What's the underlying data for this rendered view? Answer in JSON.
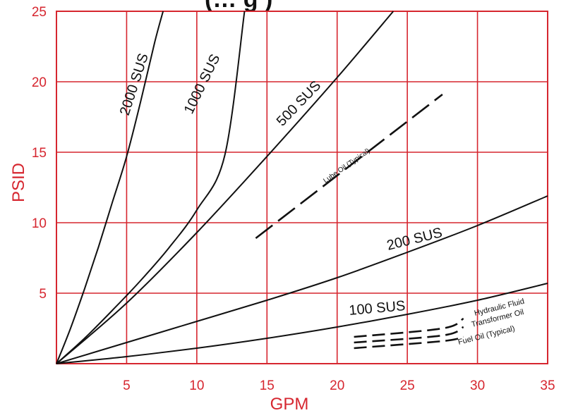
{
  "chart_data": {
    "type": "line",
    "title": "(… g )",
    "xlabel": "GPM",
    "ylabel": "PSID",
    "xlim": [
      0,
      35
    ],
    "ylim": [
      0,
      25
    ],
    "xticks": [
      5,
      10,
      15,
      20,
      25,
      30,
      35
    ],
    "yticks": [
      5,
      10,
      15,
      20,
      25
    ],
    "grid": true,
    "colors": {
      "grid": "#d6262f",
      "text": "#d6262f",
      "curve": "#111111"
    },
    "series": [
      {
        "name": "2000 SUS",
        "style": "solid",
        "x": [
          0,
          1,
          2,
          3,
          4,
          5,
          6,
          7,
          7.6
        ],
        "y": [
          0,
          2.5,
          5.3,
          8.3,
          11.5,
          14.7,
          18.6,
          22.8,
          25
        ]
      },
      {
        "name": "1000 SUS",
        "style": "solid",
        "x": [
          0,
          2,
          4,
          6,
          8,
          10,
          12,
          13.4
        ],
        "y": [
          0,
          1.8,
          3.8,
          5.9,
          8.2,
          10.9,
          14.8,
          25
        ]
      },
      {
        "name": "500 SUS",
        "style": "solid",
        "x": [
          0,
          5,
          10,
          15,
          20,
          24
        ],
        "y": [
          0,
          4.3,
          9.3,
          14.7,
          20.3,
          25
        ]
      },
      {
        "name": "200 SUS",
        "style": "solid",
        "x": [
          0,
          5,
          10,
          15,
          20,
          25,
          30,
          35
        ],
        "y": [
          0,
          1.5,
          3,
          4.5,
          6.1,
          7.9,
          9.8,
          11.9
        ]
      },
      {
        "name": "100 SUS",
        "style": "solid",
        "x": [
          0,
          5,
          10,
          15,
          20,
          25,
          30,
          35
        ],
        "y": [
          0,
          0.5,
          1.1,
          1.8,
          2.6,
          3.5,
          4.5,
          5.7
        ]
      },
      {
        "name": "Lube Oil (Typical)",
        "style": "dashed",
        "x": [
          14.2,
          27.5
        ],
        "y": [
          8.9,
          19.1
        ]
      },
      {
        "name": "Hydraulic Fluid",
        "style": "dashed",
        "x": [
          21.2,
          27.5,
          29.0
        ],
        "y": [
          1.9,
          2.5,
          3.2
        ]
      },
      {
        "name": "Transformer Oil",
        "style": "dashed",
        "x": [
          21.2,
          27.5,
          29.0
        ],
        "y": [
          1.5,
          2.0,
          2.6
        ]
      },
      {
        "name": "Fuel Oil (Typical)",
        "style": "dashed",
        "x": [
          21.2,
          27.5,
          29.0
        ],
        "y": [
          1.1,
          1.6,
          1.9
        ]
      }
    ]
  }
}
